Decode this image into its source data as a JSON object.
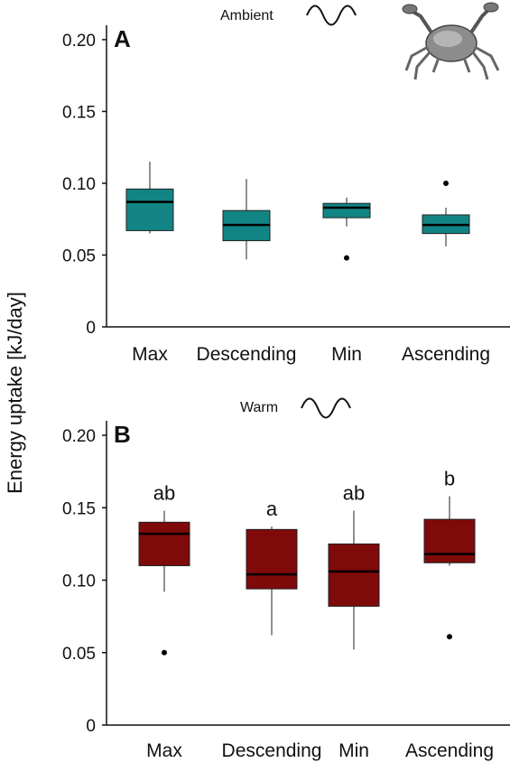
{
  "ylabel": "Energy uptake [kJ/day]",
  "icons": [
    "crab-icon",
    "sine-wave-icon"
  ],
  "chart_data": [
    {
      "type": "box",
      "panel": "A",
      "condition": "Ambient",
      "box_color": "#138484",
      "categories": [
        "Max",
        "Descending",
        "Min",
        "Ascending"
      ],
      "ylim": [
        0,
        0.21
      ],
      "yticks": [
        0,
        0.05,
        0.1,
        0.15,
        0.2
      ],
      "ytick_labels": [
        "0",
        "0.05",
        "0.10",
        "0.15",
        "0.20"
      ],
      "grid": false,
      "boxes": [
        {
          "category": "Max",
          "whisker_low": 0.065,
          "q1": 0.067,
          "median": 0.087,
          "q3": 0.096,
          "whisker_high": 0.115,
          "outliers": []
        },
        {
          "category": "Descending",
          "whisker_low": 0.047,
          "q1": 0.06,
          "median": 0.071,
          "q3": 0.081,
          "whisker_high": 0.103,
          "outliers": []
        },
        {
          "category": "Min",
          "whisker_low": 0.07,
          "q1": 0.076,
          "median": 0.083,
          "q3": 0.086,
          "whisker_high": 0.09,
          "outliers": [
            0.048
          ]
        },
        {
          "category": "Ascending",
          "whisker_low": 0.056,
          "q1": 0.065,
          "median": 0.071,
          "q3": 0.078,
          "whisker_high": 0.083,
          "outliers": [
            0.1
          ]
        }
      ],
      "significance_labels": []
    },
    {
      "type": "box",
      "panel": "B",
      "condition": "Warm",
      "box_color": "#7f0a0a",
      "categories": [
        "Max",
        "Descending",
        "Min",
        "Ascending"
      ],
      "ylim": [
        0,
        0.21
      ],
      "yticks": [
        0,
        0.05,
        0.1,
        0.15,
        0.2
      ],
      "ytick_labels": [
        "0",
        "0.05",
        "0.10",
        "0.15",
        "0.20"
      ],
      "grid": false,
      "boxes": [
        {
          "category": "Max",
          "whisker_low": 0.092,
          "q1": 0.11,
          "median": 0.132,
          "q3": 0.14,
          "whisker_high": 0.148,
          "outliers": [
            0.05
          ]
        },
        {
          "category": "Descending",
          "whisker_low": 0.062,
          "q1": 0.094,
          "median": 0.104,
          "q3": 0.135,
          "whisker_high": 0.137,
          "outliers": []
        },
        {
          "category": "Min",
          "whisker_low": 0.052,
          "q1": 0.082,
          "median": 0.106,
          "q3": 0.125,
          "whisker_high": 0.148,
          "outliers": []
        },
        {
          "category": "Ascending",
          "whisker_low": 0.11,
          "q1": 0.112,
          "median": 0.118,
          "q3": 0.142,
          "whisker_high": 0.158,
          "outliers": [
            0.061
          ]
        }
      ],
      "significance_labels": [
        "ab",
        "a",
        "ab",
        "b"
      ]
    }
  ]
}
